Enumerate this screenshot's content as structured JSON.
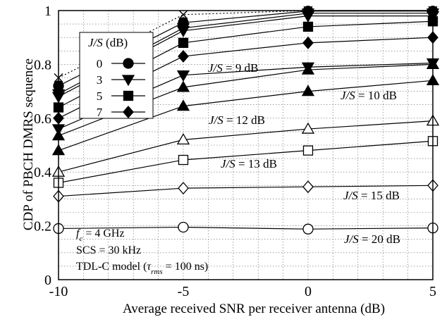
{
  "chart_data": {
    "type": "line",
    "xlabel": "Average received SNR per receiver antenna (dB)",
    "ylabel": "CDP of PBCH DMRS sequence",
    "xlim": [
      -10,
      5
    ],
    "ylim": [
      0,
      1
    ],
    "xticks": [
      "-10",
      "-5",
      "0",
      "5"
    ],
    "yticks": [
      "0",
      "0.2",
      "0.4",
      "0.6",
      "0.8",
      "1"
    ],
    "x": [
      -10,
      -5,
      0,
      5
    ],
    "grid": true,
    "legend": {
      "title_italic": "J/S",
      "title_unit": " (dB)",
      "entries": [
        {
          "label": "0",
          "marker": "circle-filled"
        },
        {
          "label": "3",
          "marker": "triangle-down-filled"
        },
        {
          "label": "5",
          "marker": "square-filled"
        },
        {
          "label": "7",
          "marker": "diamond-filled"
        }
      ],
      "placement": "upper-left"
    },
    "series": [
      {
        "marker": "x-cross",
        "style": "dotted",
        "values": [
          0.75,
          0.985,
          1.0,
          1.0
        ]
      },
      {
        "marker": "circle-filled",
        "values": [
          0.72,
          0.955,
          0.998,
          0.998
        ]
      },
      {
        "marker": "triangle-down-filled",
        "values": [
          0.69,
          0.935,
          0.99,
          0.99
        ]
      },
      {
        "marker": "triangle-down-filled",
        "values": [
          0.68,
          0.925,
          0.98,
          0.98
        ]
      },
      {
        "marker": "square-filled",
        "values": [
          0.64,
          0.88,
          0.94,
          0.96
        ]
      },
      {
        "marker": "diamond-filled",
        "values": [
          0.6,
          0.83,
          0.88,
          0.9
        ]
      },
      {
        "marker": "triangle-down-filled",
        "values": [
          0.56,
          0.76,
          0.79,
          0.805
        ]
      },
      {
        "marker": "triangle-up-filled",
        "values": [
          0.535,
          0.715,
          0.78,
          0.8
        ]
      },
      {
        "marker": "triangle-up-filled",
        "values": [
          0.48,
          0.645,
          0.7,
          0.74
        ]
      },
      {
        "marker": "triangle-up-open",
        "values": [
          0.4,
          0.52,
          0.56,
          0.59
        ]
      },
      {
        "marker": "square-open",
        "values": [
          0.36,
          0.445,
          0.48,
          0.515
        ]
      },
      {
        "marker": "diamond-open",
        "values": [
          0.31,
          0.34,
          0.345,
          0.35
        ]
      },
      {
        "marker": "circle-open",
        "values": [
          0.19,
          0.195,
          0.188,
          0.192
        ]
      }
    ],
    "annotations": [
      {
        "italic": "J/S",
        "text": " = 9 dB"
      },
      {
        "italic": "J/S",
        "text": " = 10 dB"
      },
      {
        "italic": "J/S",
        "text": " = 12 dB"
      },
      {
        "italic": "J/S",
        "text": " = 13 dB"
      },
      {
        "italic": "J/S",
        "text": " = 15 dB"
      },
      {
        "italic": "J/S",
        "text": " = 20 dB"
      }
    ],
    "notes": {
      "fc_symbol": "f",
      "fc_sub": "c",
      "fc_value": " = 4 GHz",
      "scs": "SCS = 30 kHz",
      "tdl_prefix": "TDL-C model (",
      "tau": "τ",
      "tau_sub": "rms",
      "tdl_suffix": " = 100 ns)"
    }
  }
}
